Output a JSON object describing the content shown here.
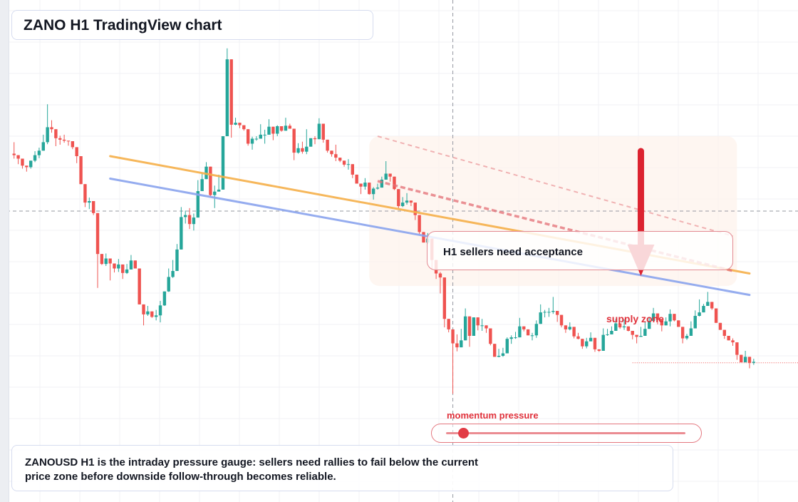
{
  "title": "ZANO H1 TradingView chart",
  "callout": "H1 sellers need acceptance",
  "supply_label": "supply zone",
  "momentum": {
    "label": "momentum pressure",
    "level": 0.07
  },
  "summary": "ZANOUSD H1 is the intraday pressure gauge: sellers need rallies to fail below the current price zone before downside follow-through becomes reliable.",
  "colors": {
    "bull": "#26a69a",
    "bear": "#ef5350",
    "accent": "#e0313b",
    "line_orange": "#f6b04a",
    "line_blue": "#8aa4ee"
  },
  "chart_data": {
    "type": "candlestick",
    "x": {
      "start": 0,
      "end": 180
    },
    "ylim": [
      0,
      100
    ],
    "grid": true,
    "candles": [
      [
        0,
        0.0,
        0.0,
        0.0,
        0.0
      ],
      [
        1,
        0.0,
        0.0,
        0.0,
        0.0
      ],
      [
        2,
        83.5,
        83.2,
        85.8,
        82.5
      ],
      [
        3,
        83.2,
        82.5,
        83.2,
        81.4
      ],
      [
        4,
        82.5,
        81.1,
        82.5,
        80.5
      ],
      [
        5,
        81.1,
        80.8,
        81.1,
        79.9
      ],
      [
        6,
        80.8,
        82.1,
        82.1,
        80.5
      ],
      [
        7,
        82.1,
        83.2,
        84.0,
        81.8
      ],
      [
        8,
        83.2,
        84.1,
        84.7,
        82.6
      ],
      [
        9,
        84.1,
        85.8,
        87.3,
        84.1
      ],
      [
        10,
        85.8,
        88.8,
        93.4,
        85.4
      ],
      [
        11,
        88.8,
        88.4,
        90.2,
        87.7
      ],
      [
        12,
        88.4,
        86.6,
        88.4,
        85.0
      ],
      [
        13,
        86.6,
        86.3,
        87.1,
        85.3
      ],
      [
        14,
        86.3,
        86.1,
        87.3,
        85.7
      ],
      [
        15,
        86.1,
        86.0,
        86.1,
        85.1
      ],
      [
        16,
        86.0,
        84.8,
        86.0,
        84.4
      ],
      [
        17,
        84.8,
        83.0,
        84.8,
        81.6
      ],
      [
        18,
        83.0,
        77.4,
        83.0,
        77.4
      ],
      [
        19,
        77.4,
        73.7,
        77.4,
        72.8
      ],
      [
        20,
        73.7,
        74.0,
        74.7,
        72.4
      ],
      [
        21,
        74.0,
        71.6,
        74.0,
        71.2
      ],
      [
        22,
        71.6,
        63.4,
        71.6,
        56.6
      ],
      [
        23,
        63.4,
        61.4,
        63.4,
        61.2
      ],
      [
        24,
        61.4,
        62.5,
        63.5,
        61.0
      ],
      [
        25,
        62.5,
        61.5,
        62.5,
        58.1
      ],
      [
        26,
        61.5,
        60.5,
        61.5,
        59.7
      ],
      [
        27,
        60.5,
        61.3,
        62.4,
        59.8
      ],
      [
        28,
        61.3,
        59.6,
        61.3,
        58.4
      ],
      [
        29,
        59.6,
        60.3,
        61.4,
        59.4
      ],
      [
        30,
        60.3,
        62.1,
        63.2,
        60.3
      ],
      [
        31,
        62.1,
        60.5,
        62.1,
        60.5
      ],
      [
        32,
        60.5,
        53.3,
        60.5,
        53.3
      ],
      [
        33,
        53.3,
        51.3,
        53.3,
        49.1
      ],
      [
        34,
        51.3,
        51.9,
        53.0,
        51.0
      ],
      [
        35,
        51.9,
        50.8,
        51.9,
        50.6
      ],
      [
        36,
        50.8,
        51.1,
        52.2,
        50.1
      ],
      [
        37,
        51.1,
        53.1,
        54.0,
        49.7
      ],
      [
        38,
        53.1,
        55.9,
        55.9,
        53.0
      ],
      [
        39,
        55.9,
        58.8,
        60.5,
        55.8
      ],
      [
        40,
        58.8,
        60.0,
        62.2,
        58.6
      ],
      [
        41,
        60.0,
        64.3,
        65.4,
        60.0
      ],
      [
        42,
        64.3,
        70.8,
        72.8,
        64.3
      ],
      [
        43,
        70.8,
        71.2,
        72.1,
        69.5
      ],
      [
        44,
        71.2,
        69.4,
        72.6,
        68.4
      ],
      [
        45,
        69.4,
        70.7,
        71.5,
        68.1
      ],
      [
        46,
        70.7,
        76.0,
        78.2,
        70.7
      ],
      [
        47,
        76.0,
        78.4,
        79.5,
        76.0
      ],
      [
        48,
        78.4,
        80.9,
        81.8,
        78.4
      ],
      [
        49,
        80.9,
        75.2,
        80.9,
        75.0
      ],
      [
        50,
        75.2,
        75.9,
        77.1,
        72.6
      ],
      [
        51,
        75.9,
        76.3,
        79.3,
        76.0
      ],
      [
        52,
        76.3,
        87.0,
        87.0,
        76.3
      ],
      [
        53,
        87.0,
        102.4,
        104.6,
        87.0
      ],
      [
        54,
        102.4,
        89.3,
        102.4,
        86.7
      ],
      [
        55,
        89.3,
        89.7,
        90.7,
        89.2
      ],
      [
        56,
        89.7,
        89.2,
        89.7,
        88.6
      ],
      [
        57,
        89.2,
        88.4,
        89.2,
        88.1
      ],
      [
        58,
        88.4,
        85.5,
        88.4,
        85.1
      ],
      [
        59,
        85.5,
        86.5,
        86.9,
        84.3
      ],
      [
        60,
        86.5,
        86.5,
        87.0,
        86.1
      ],
      [
        61,
        86.5,
        87.3,
        89.4,
        86.5
      ],
      [
        62,
        87.3,
        87.3,
        88.3,
        85.5
      ],
      [
        63,
        87.3,
        88.9,
        90.4,
        87.3
      ],
      [
        64,
        88.9,
        87.5,
        88.9,
        86.2
      ],
      [
        65,
        87.5,
        89.0,
        89.2,
        87.0
      ],
      [
        66,
        89.0,
        88.1,
        89.0,
        87.9
      ],
      [
        67,
        88.1,
        89.1,
        90.7,
        88.1
      ],
      [
        68,
        89.1,
        88.5,
        89.5,
        88.5
      ],
      [
        69,
        88.5,
        83.7,
        88.5,
        82.2
      ],
      [
        70,
        83.7,
        84.6,
        85.6,
        83.5
      ],
      [
        71,
        84.6,
        83.9,
        85.9,
        83.5
      ],
      [
        72,
        83.9,
        84.9,
        88.4,
        83.4
      ],
      [
        73,
        84.9,
        86.6,
        86.6,
        84.9
      ],
      [
        74,
        86.6,
        86.4,
        87.0,
        85.4
      ],
      [
        75,
        86.4,
        89.5,
        90.6,
        86.4
      ],
      [
        76,
        89.5,
        86.3,
        89.5,
        85.7
      ],
      [
        77,
        86.3,
        84.1,
        86.3,
        83.7
      ],
      [
        78,
        84.1,
        83.4,
        84.1,
        82.9
      ],
      [
        79,
        83.4,
        82.7,
        85.3,
        82.0
      ],
      [
        80,
        82.7,
        82.1,
        82.7,
        81.8
      ],
      [
        81,
        82.1,
        81.3,
        82.1,
        80.9
      ],
      [
        82,
        81.3,
        81.4,
        82.4,
        80.3
      ],
      [
        83,
        81.4,
        79.3,
        81.4,
        78.6
      ],
      [
        84,
        79.3,
        77.5,
        79.3,
        77.5
      ],
      [
        85,
        77.5,
        76.9,
        77.5,
        75.4
      ],
      [
        86,
        76.9,
        77.7,
        78.6,
        76.3
      ],
      [
        87,
        77.7,
        75.4,
        77.7,
        75.3
      ],
      [
        88,
        75.4,
        76.5,
        76.8,
        74.3
      ],
      [
        89,
        76.5,
        76.7,
        77.5,
        76.3
      ],
      [
        90,
        76.7,
        78.3,
        78.9,
        76.7
      ],
      [
        91,
        78.3,
        79.5,
        82.0,
        78.3
      ],
      [
        92,
        79.5,
        78.9,
        79.5,
        77.9
      ],
      [
        93,
        78.9,
        76.4,
        78.9,
        76.2
      ],
      [
        94,
        76.4,
        73.0,
        76.4,
        72.6
      ],
      [
        95,
        73.0,
        73.7,
        74.8,
        72.8
      ],
      [
        96,
        73.7,
        74.1,
        75.6,
        73.3
      ],
      [
        97,
        74.1,
        73.7,
        74.1,
        73.0
      ],
      [
        98,
        73.7,
        71.2,
        73.7,
        70.2
      ],
      [
        99,
        71.2,
        67.8,
        71.2,
        67.4
      ],
      [
        100,
        67.8,
        65.7,
        67.8,
        65.7
      ],
      [
        101,
        65.7,
        66.5,
        67.6,
        65.4
      ],
      [
        102,
        66.5,
        62.2,
        66.5,
        60.3
      ],
      [
        103,
        62.2,
        59.5,
        62.2,
        58.4
      ],
      [
        104,
        59.5,
        58.7,
        59.8,
        55.5
      ],
      [
        105,
        58.7,
        50.4,
        58.7,
        48.7
      ],
      [
        106,
        50.4,
        48.3,
        50.4,
        47.7
      ],
      [
        107,
        48.3,
        45.5,
        48.3,
        35.4
      ],
      [
        108,
        45.5,
        44.7,
        47.3,
        43.9
      ],
      [
        109,
        44.7,
        46.1,
        48.4,
        44.7
      ],
      [
        110,
        46.1,
        50.9,
        52.5,
        46.1
      ],
      [
        111,
        50.9,
        47.0,
        50.9,
        44.8
      ],
      [
        112,
        47.0,
        50.7,
        50.7,
        47.0
      ],
      [
        113,
        50.7,
        49.1,
        50.7,
        48.1
      ],
      [
        114,
        49.1,
        49.1,
        50.4,
        48.0
      ],
      [
        115,
        49.1,
        48.5,
        49.1,
        47.6
      ],
      [
        116,
        48.5,
        45.4,
        48.5,
        45.1
      ],
      [
        117,
        45.4,
        42.8,
        45.4,
        42.8
      ],
      [
        118,
        42.8,
        43.0,
        44.4,
        42.7
      ],
      [
        119,
        43.0,
        43.5,
        44.6,
        42.8
      ],
      [
        120,
        43.5,
        46.4,
        46.7,
        43.5
      ],
      [
        121,
        46.4,
        46.7,
        47.1,
        45.4
      ],
      [
        122,
        46.7,
        46.7,
        47.8,
        46.4
      ],
      [
        123,
        46.7,
        48.9,
        50.6,
        46.7
      ],
      [
        124,
        48.9,
        48.3,
        48.9,
        47.9
      ],
      [
        125,
        48.3,
        47.1,
        48.3,
        47.1
      ],
      [
        126,
        47.1,
        47.1,
        47.6,
        46.1
      ],
      [
        127,
        47.1,
        49.4,
        50.1,
        46.6
      ],
      [
        128,
        49.4,
        51.7,
        53.3,
        49.4
      ],
      [
        129,
        51.7,
        51.8,
        52.2,
        50.7
      ],
      [
        130,
        51.8,
        51.8,
        52.6,
        50.8
      ],
      [
        131,
        51.8,
        52.0,
        54.8,
        51.4
      ],
      [
        132,
        52.0,
        51.2,
        52.0,
        49.8
      ],
      [
        133,
        51.2,
        49.1,
        51.2,
        48.7
      ],
      [
        134,
        49.1,
        48.3,
        49.1,
        47.6
      ],
      [
        135,
        48.3,
        48.8,
        49.7,
        48.1
      ],
      [
        136,
        48.8,
        46.9,
        48.8,
        46.5
      ],
      [
        137,
        46.9,
        46.4,
        47.6,
        46.3
      ],
      [
        138,
        46.4,
        44.9,
        46.4,
        44.4
      ],
      [
        139,
        44.9,
        45.9,
        46.6,
        44.5
      ],
      [
        140,
        45.9,
        46.6,
        47.7,
        45.9
      ],
      [
        141,
        46.6,
        44.3,
        46.6,
        43.8
      ],
      [
        142,
        44.3,
        44.0,
        44.3,
        43.8
      ],
      [
        143,
        44.0,
        47.2,
        48.5,
        44.0
      ],
      [
        144,
        47.2,
        47.3,
        48.4,
        47.0
      ],
      [
        145,
        47.3,
        48.0,
        48.9,
        47.3
      ],
      [
        146,
        48.0,
        49.5,
        50.4,
        48.0
      ],
      [
        147,
        49.5,
        48.7,
        49.5,
        48.4
      ],
      [
        148,
        48.7,
        48.9,
        50.3,
        48.2
      ],
      [
        149,
        48.9,
        48.0,
        48.9,
        47.9
      ],
      [
        150,
        48.0,
        47.2,
        48.0,
        46.3
      ],
      [
        151,
        47.2,
        46.8,
        47.2,
        45.5
      ],
      [
        152,
        46.8,
        47.0,
        48.8,
        46.8
      ],
      [
        153,
        47.0,
        48.4,
        49.8,
        47.0
      ],
      [
        154,
        48.4,
        50.0,
        50.8,
        48.4
      ],
      [
        155,
        50.0,
        51.5,
        52.6,
        50.0
      ],
      [
        156,
        51.5,
        50.2,
        51.5,
        49.3
      ],
      [
        157,
        50.2,
        49.1,
        50.2,
        47.9
      ],
      [
        158,
        49.1,
        49.9,
        50.7,
        49.1
      ],
      [
        159,
        49.9,
        51.4,
        52.3,
        48.9
      ],
      [
        160,
        51.4,
        50.1,
        51.4,
        49.9
      ],
      [
        161,
        50.1,
        48.8,
        50.1,
        48.8
      ],
      [
        162,
        48.8,
        46.5,
        48.8,
        45.5
      ],
      [
        163,
        46.5,
        47.0,
        47.4,
        46.2
      ],
      [
        164,
        47.0,
        48.5,
        49.9,
        47.0
      ],
      [
        165,
        48.5,
        51.0,
        52.1,
        48.5
      ],
      [
        166,
        51.0,
        51.7,
        54.3,
        50.9
      ],
      [
        167,
        51.7,
        53.0,
        53.4,
        51.7
      ],
      [
        168,
        53.0,
        53.8,
        55.8,
        53.0
      ],
      [
        169,
        53.8,
        52.5,
        53.8,
        52.2
      ],
      [
        170,
        52.5,
        49.6,
        52.5,
        49.6
      ],
      [
        171,
        49.6,
        48.2,
        49.6,
        48.2
      ],
      [
        172,
        48.2,
        47.0,
        48.2,
        46.4
      ],
      [
        173,
        47.0,
        46.1,
        47.0,
        46.1
      ],
      [
        174,
        46.1,
        45.7,
        46.5,
        45.0
      ],
      [
        175,
        45.7,
        43.2,
        45.7,
        42.2
      ],
      [
        176,
        43.2,
        41.7,
        43.2,
        41.7
      ],
      [
        177,
        41.7,
        42.8,
        44.0,
        41.7
      ],
      [
        178,
        42.8,
        41.6,
        42.8,
        40.5
      ],
      [
        179,
        41.6,
        41.8,
        42.4,
        41.2
      ]
    ],
    "lines": [
      {
        "color": "#f6b04a",
        "x1": 25,
        "y1": 83.0,
        "x2": 178,
        "y2": 59.5
      },
      {
        "color": "#8aa4ee",
        "x1": 25,
        "y1": 78.5,
        "x2": 178,
        "y2": 55.2
      }
    ],
    "supply_zone": {
      "x1": 87,
      "x2": 175,
      "y1": 57.0,
      "y2": 87.0
    },
    "channel": [
      {
        "x1": 89,
        "y1": 78.0,
        "x2": 174,
        "y2": 60.0,
        "dash": "7,4",
        "width": 3.5,
        "opacity": 0.75
      },
      {
        "x1": 89,
        "y1": 87.0,
        "x2": 174,
        "y2": 67.0,
        "dash": "6,5",
        "width": 2,
        "opacity": 0.5
      }
    ],
    "arrow": {
      "x": 152,
      "y_top": 84.0,
      "y_bottom": 59.0
    },
    "crosshair": {
      "x": 107,
      "y": 72.0
    },
    "price_line": 41.6
  }
}
